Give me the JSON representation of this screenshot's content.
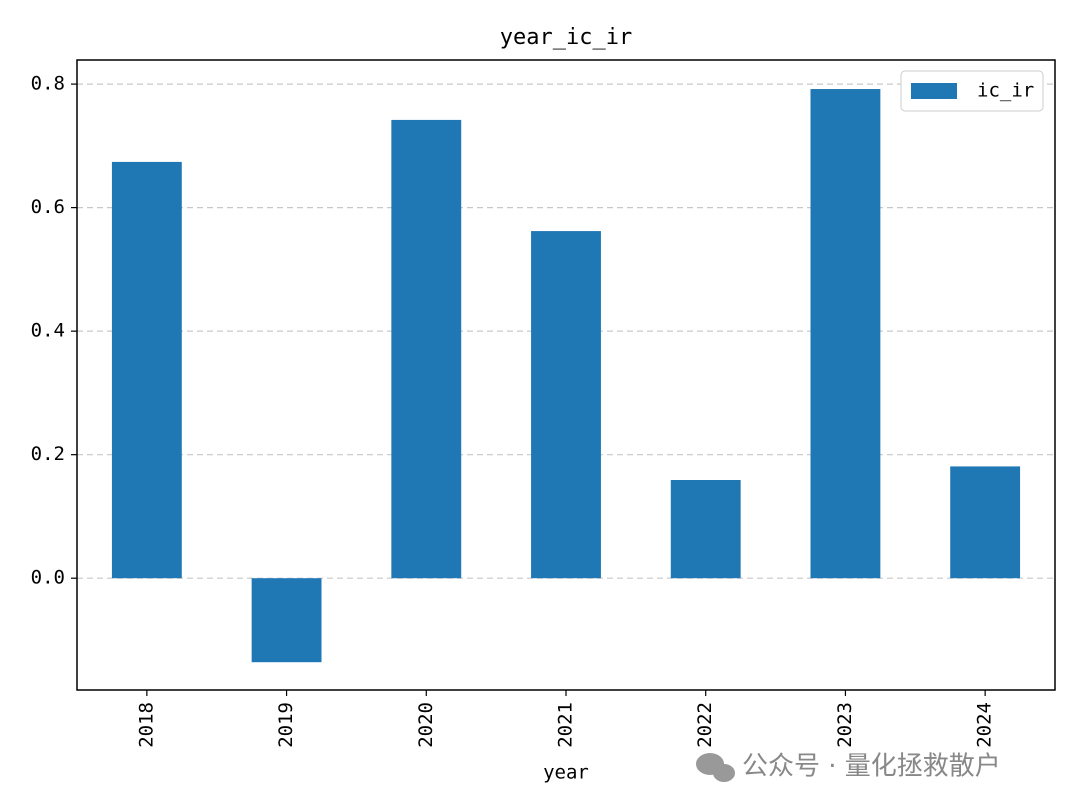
{
  "chart_data": {
    "type": "bar",
    "title": "year_ic_ir",
    "x_label": "year",
    "categories": [
      "2018",
      "2019",
      "2020",
      "2021",
      "2022",
      "2023",
      "2024"
    ],
    "series": [
      {
        "name": "ic_ir",
        "color": "#1f77b4",
        "values": [
          0.674,
          -0.136,
          0.742,
          0.562,
          0.159,
          0.792,
          0.181
        ]
      }
    ],
    "ylim": [
      -0.181,
      0.839
    ],
    "yticks": [
      {
        "value": 0,
        "label": "0.0"
      },
      0.2,
      0.4,
      0.6,
      0.8
    ],
    "grid": true,
    "legend": "upper right",
    "watermark": "公众号 · 量化拯救散户"
  }
}
